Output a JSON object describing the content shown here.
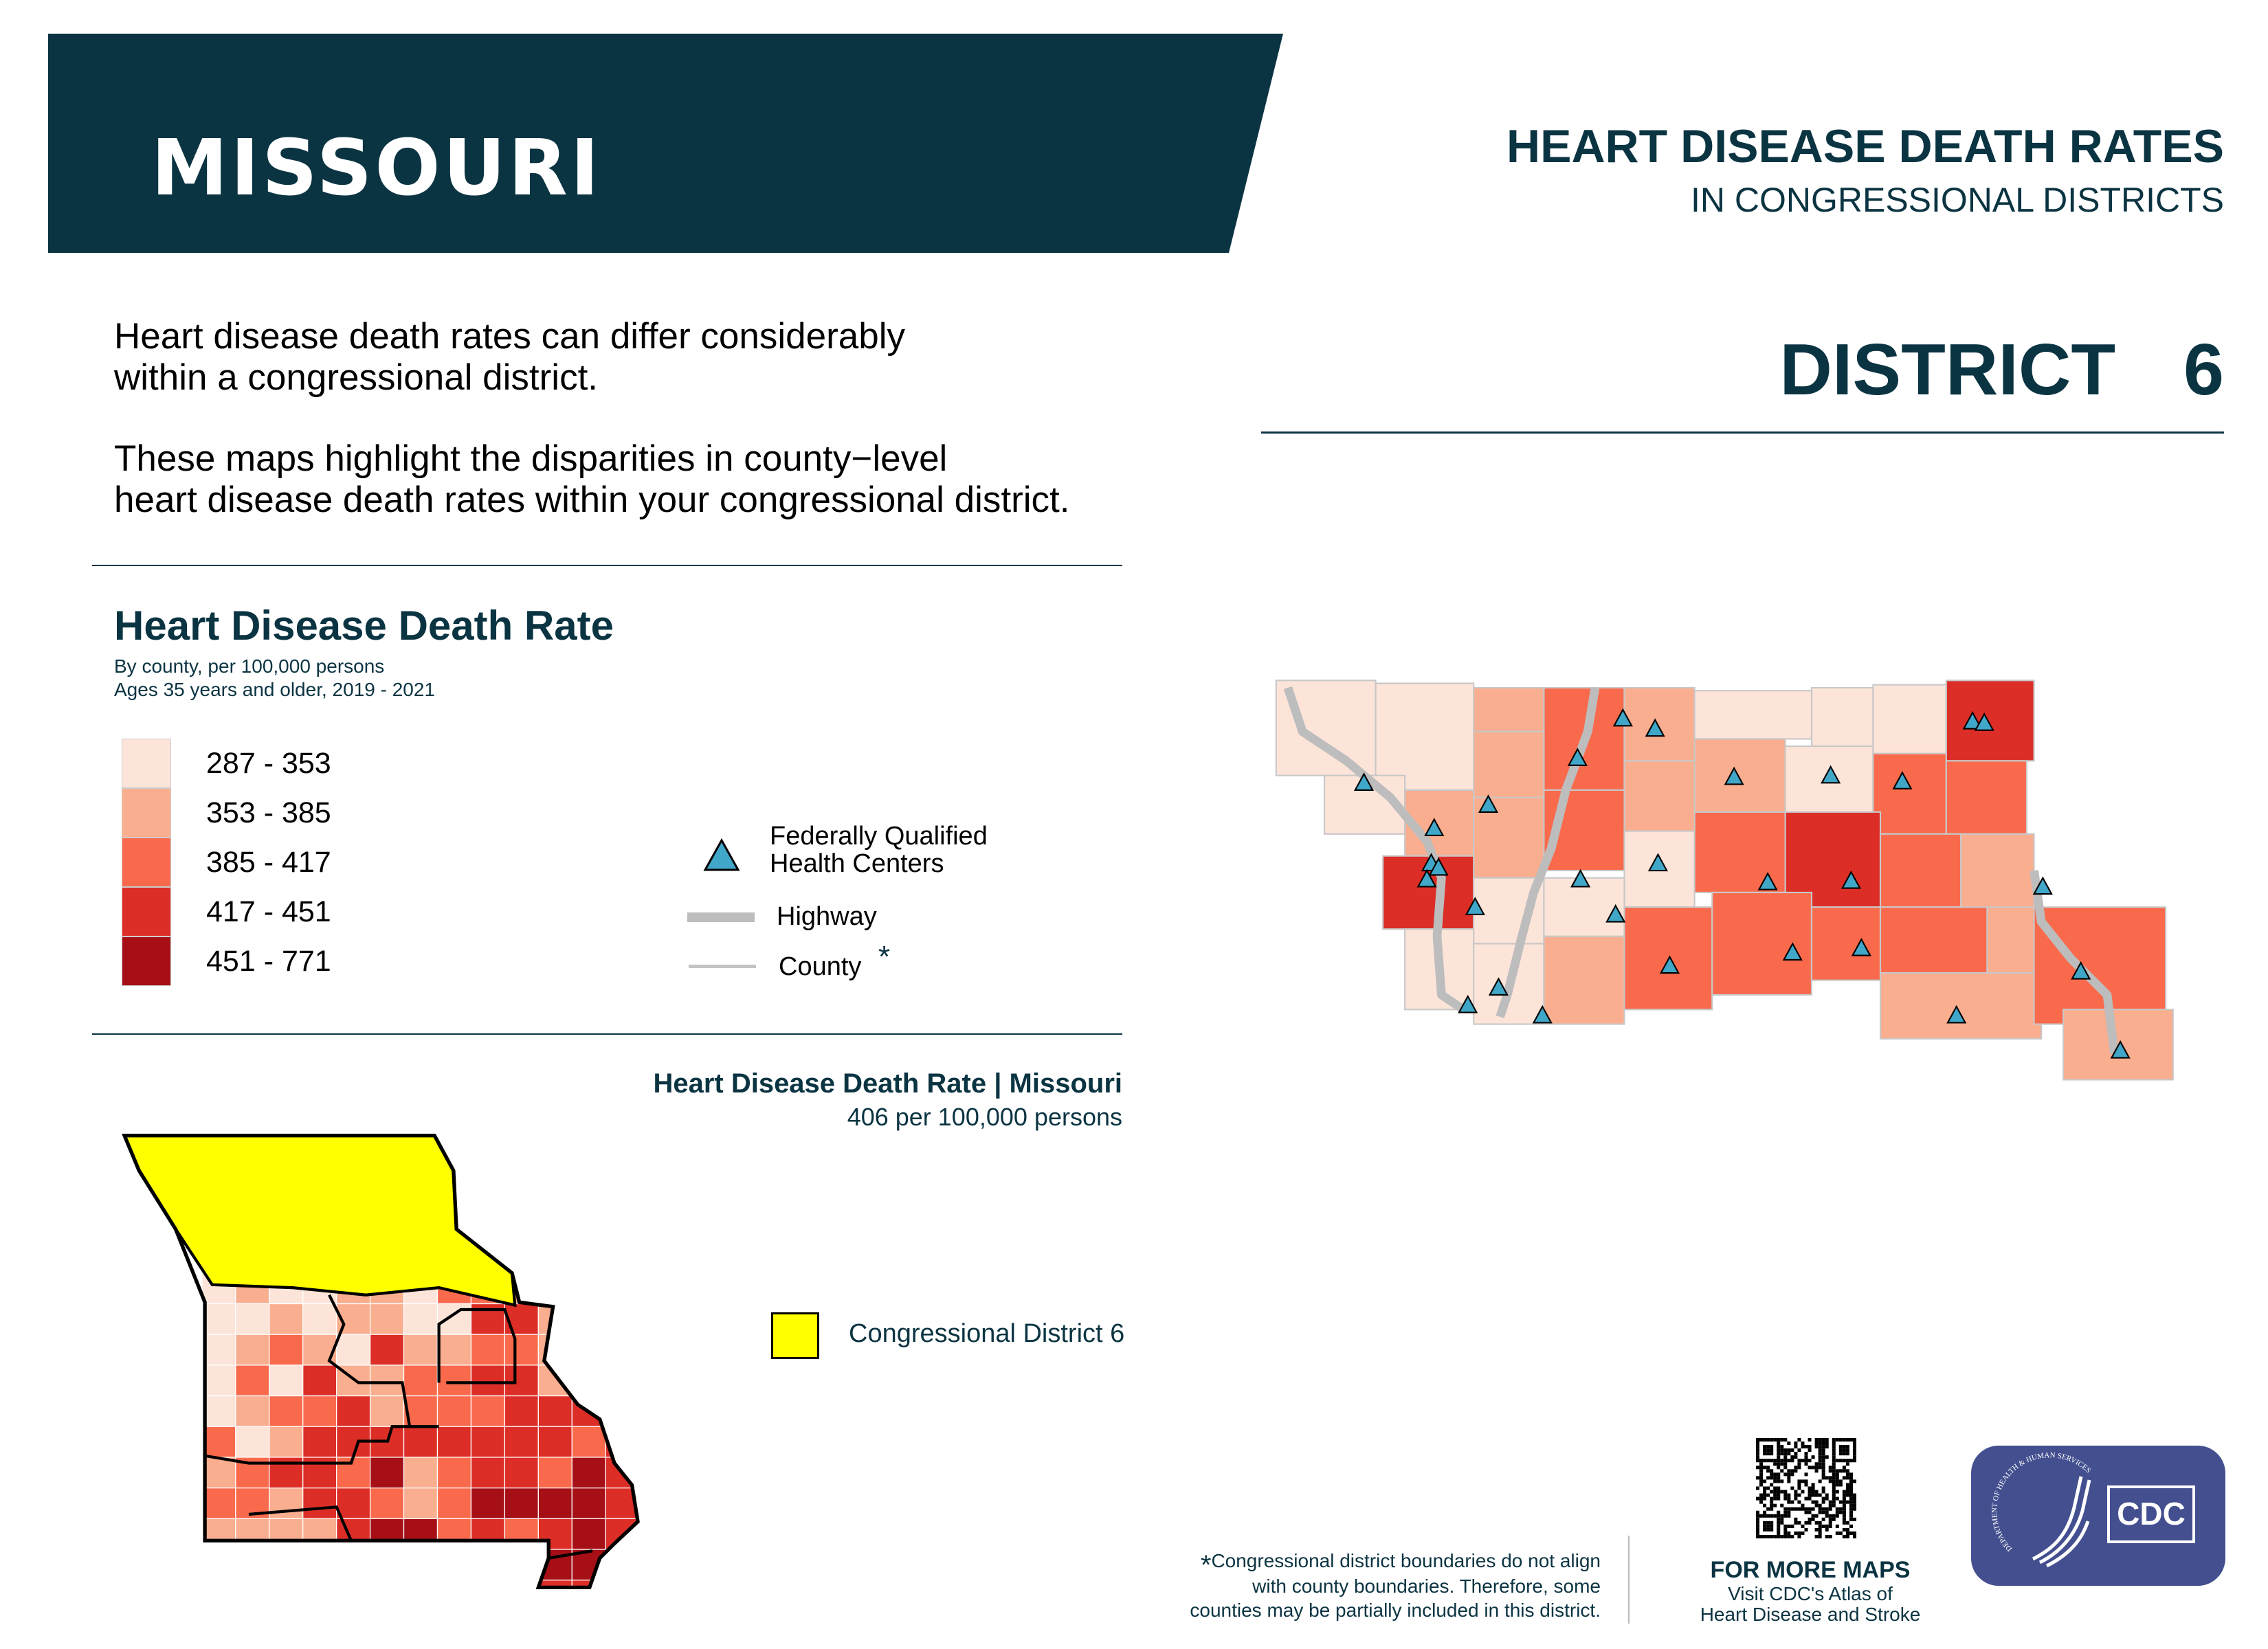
{
  "header": {
    "state": "MISSOURI",
    "title": "HEART DISEASE DEATH RATES",
    "subtitle": "IN CONGRESSIONAL DISTRICTS",
    "district": "DISTRICT  6",
    "banner_color": "#0b3442"
  },
  "intro": {
    "p1_line1": "Heart disease death rates can differ considerably",
    "p1_line2": "within a congressional district.",
    "p2_line1": "These maps highlight the disparities in county−level",
    "p2_line2": "heart disease death rates within your congressional district."
  },
  "legend": {
    "title": "Heart Disease Death Rate",
    "sub1": "By county, per 100,000 persons",
    "sub2": "Ages 35 years and older, 2019 - 2021",
    "classes": [
      {
        "label": "287 - 353",
        "color": "#fde4d9"
      },
      {
        "label": "353 - 385",
        "color": "#f9ae8f"
      },
      {
        "label": "385 - 417",
        "color": "#f96a4d"
      },
      {
        "label": "417 - 451",
        "color": "#dc2e27"
      },
      {
        "label": "451 - 771",
        "color": "#a50f15"
      }
    ],
    "fqhc_line1": "Federally Qualified",
    "fqhc_line2": "Health Centers",
    "fqhc_color": "#41a7c9",
    "highway": "Highway",
    "county": "County",
    "county_mark": "*"
  },
  "state_map": {
    "title": "Heart Disease Death Rate | Missouri",
    "rate": "406 per 100,000 persons",
    "district_label": "Congressional District 6",
    "district_color": "#ffff00"
  },
  "footer": {
    "note_mark": "*",
    "note1": "Congressional district boundaries do not align",
    "note2": "with county boundaries. Therefore, some",
    "note3": "counties may be partially included in this district.",
    "more_title": "FOR MORE MAPS",
    "more1": "Visit CDC's Atlas of",
    "more2": "Heart Disease and Stroke",
    "logo_text": "CDC",
    "hhs_text": "DEPARTMENT OF HEALTH & HUMAN SERVICES·USA",
    "logo_color": "#434f8f"
  }
}
